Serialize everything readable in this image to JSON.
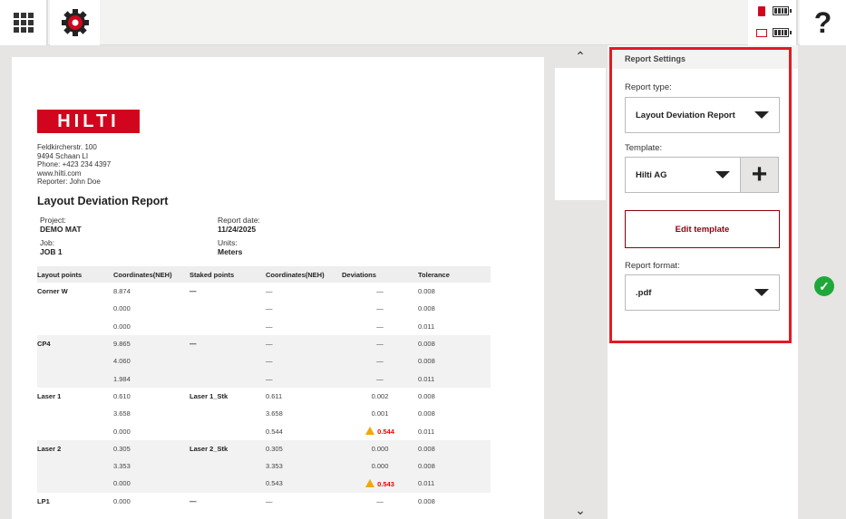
{
  "topbar": {
    "apps_icon": "grid-icon",
    "settings_icon": "gear-icon",
    "help_label": "?",
    "status": {
      "device_icon": "laser-device-icon",
      "tablet_icon": "tablet-icon"
    }
  },
  "report": {
    "logo": "HILTI",
    "address": [
      "Feldkircherstr. 100",
      "9494 Schaan LI",
      "Phone: +423 234 4397",
      "www.hilti.com",
      "Reporter: John Doe"
    ],
    "title": "Layout Deviation Report",
    "project_label": "Project:",
    "project": "DEMO MAT",
    "date_label": "Report date:",
    "date": "11/24/2025",
    "job_label": "Job:",
    "job": "JOB 1",
    "units_label": "Units:",
    "units": "Meters",
    "columns": [
      "Layout points",
      "Coordinates(NEH)",
      "Staked points",
      "Coordinates(NEH)",
      "Deviations",
      "Tolerance"
    ],
    "groups": [
      {
        "name": "Corner W",
        "staked": "—",
        "rows": [
          [
            "8.874",
            "—",
            "—",
            "0.008"
          ],
          [
            "0.000",
            "—",
            "—",
            "0.008"
          ],
          [
            "0.000",
            "—",
            "—",
            "0.011"
          ]
        ]
      },
      {
        "name": "CP4",
        "staked": "—",
        "rows": [
          [
            "9.865",
            "—",
            "—",
            "0.008"
          ],
          [
            "4.060",
            "—",
            "—",
            "0.008"
          ],
          [
            "1.984",
            "—",
            "—",
            "0.011"
          ]
        ]
      },
      {
        "name": "Laser 1",
        "staked": "Laser 1_Stk",
        "rows": [
          [
            "0.610",
            "0.611",
            "0.002",
            "0.008"
          ],
          [
            "3.658",
            "3.658",
            "0.001",
            "0.008"
          ],
          [
            "0.000",
            "0.544",
            "0.544",
            "0.011"
          ]
        ],
        "warn_row": 2
      },
      {
        "name": "Laser 2",
        "staked": "Laser 2_Stk",
        "rows": [
          [
            "0.305",
            "0.305",
            "0.000",
            "0.008"
          ],
          [
            "3.353",
            "3.353",
            "0.000",
            "0.008"
          ],
          [
            "0.000",
            "0.543",
            "0.543",
            "0.011"
          ]
        ],
        "warn_row": 2
      },
      {
        "name": "LP1",
        "staked": "—",
        "rows": [
          [
            "0.000",
            "—",
            "—",
            "0.008"
          ]
        ]
      }
    ]
  },
  "settings": {
    "header": "Report Settings",
    "report_type_label": "Report type:",
    "report_type": "Layout Deviation Report",
    "template_label": "Template:",
    "template": "Hilti AG",
    "add_template": "+",
    "edit_template": "Edit template",
    "format_label": "Report format:",
    "format": ".pdf"
  },
  "colors": {
    "brand": "#d2051e",
    "highlight": "#e21b23",
    "warning": "#f0a800",
    "ok": "#1fa83a"
  }
}
